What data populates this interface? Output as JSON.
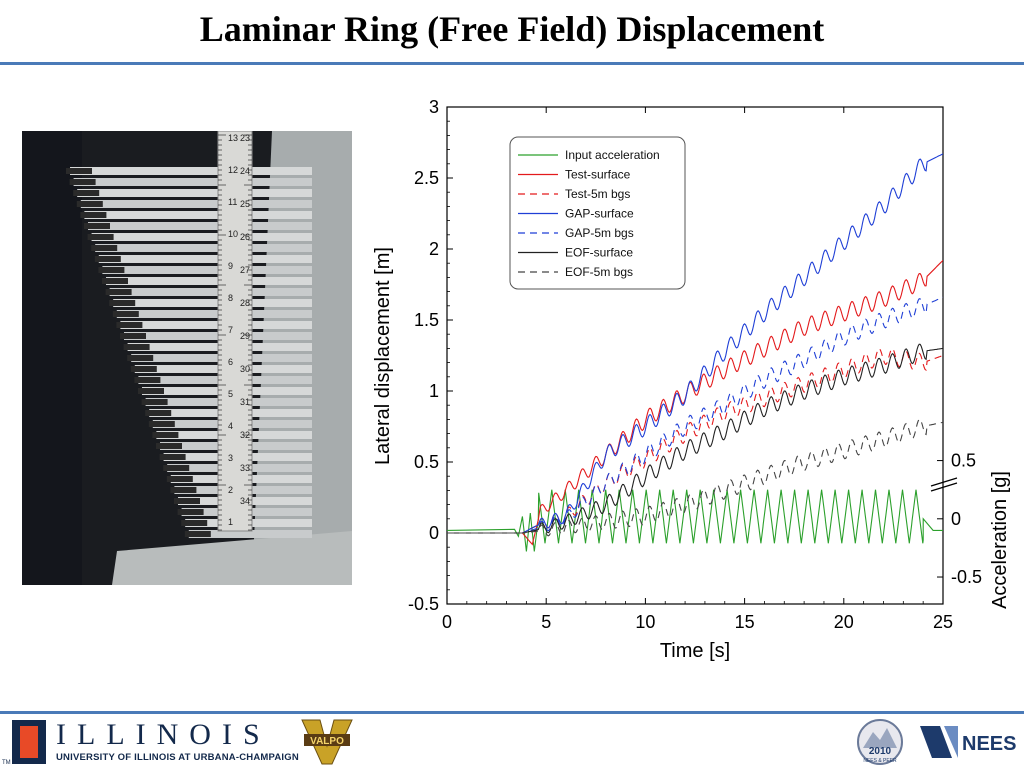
{
  "slide": {
    "title": "Laminar Ring (Free Field) Displacement"
  },
  "photo": {
    "ruler_numbers_left": [
      "13",
      "12",
      "11",
      "10",
      "9",
      "8",
      "7",
      "6",
      "5",
      "4",
      "3",
      "2",
      "1"
    ],
    "ruler_numbers_right": [
      "23",
      "24",
      "25",
      "26",
      "27",
      "28",
      "29",
      "30",
      "31",
      "32",
      "33",
      "34"
    ]
  },
  "footer": {
    "illinois_wordmark": "ILLINOIS",
    "illinois_subtitle": "UNIVERSITY OF ILLINOIS AT URBANA-CHAMPAIGN",
    "trademark": "TM",
    "valpo_label": "VALPO",
    "nees_peer_label": "NEES & PEER",
    "nees_peer_year": "2010",
    "nees_label": "NEES"
  },
  "colors": {
    "title_rule": "#4a7ab8",
    "illinois_navy": "#13294b",
    "illinois_orange": "#e84a27",
    "nees_navy": "#1d3a6b"
  },
  "chart_data": {
    "type": "line",
    "xlabel": "Time [s]",
    "ylabel": "Lateral displacement [m]",
    "y2label": "Acceleration [g]",
    "xlim": [
      0,
      25
    ],
    "ylim": [
      -0.5,
      3
    ],
    "xticks": [
      "0",
      "5",
      "10",
      "15",
      "20",
      "25"
    ],
    "yticks": [
      "-0.5",
      "0",
      "0.5",
      "1",
      "1.5",
      "2",
      "2.5",
      "3"
    ],
    "y2ticks": [
      "-0.5",
      "0",
      "0.5"
    ],
    "legend_position": "top-left",
    "series": [
      {
        "name": "Input acceleration",
        "color": "#2ca02c",
        "dash": "solid",
        "axis": "acceleration",
        "x": [
          0,
          3.4,
          3.6,
          3.8,
          4.0,
          4.2,
          4.4,
          4.6,
          24.0,
          24.5,
          25
        ],
        "y": [
          -0.1,
          -0.09,
          -0.15,
          0.02,
          -0.28,
          0.05,
          -0.28,
          0.0,
          0.0,
          -0.1,
          -0.1
        ],
        "oscillation": {
          "start": 4.6,
          "end": 24.0,
          "period": 0.68,
          "amplitude": 0.2
        }
      },
      {
        "name": "Test-surface",
        "color": "#e31a1c",
        "dash": "solid",
        "axis": "displacement",
        "x": [
          0,
          3.8,
          4.3,
          4.7,
          6,
          8,
          10,
          12,
          14,
          16,
          18,
          20,
          22,
          24,
          25
        ],
        "y": [
          0,
          0,
          -0.08,
          0.15,
          0.3,
          0.55,
          0.8,
          0.98,
          1.15,
          1.3,
          1.45,
          1.55,
          1.65,
          1.78,
          1.92
        ]
      },
      {
        "name": "Test-5m bgs",
        "color": "#e31a1c",
        "dash": "dashed",
        "axis": "displacement",
        "x": [
          0,
          3.8,
          4.5,
          6,
          8,
          10,
          12,
          14,
          16,
          18,
          20,
          22,
          24,
          25
        ],
        "y": [
          0,
          0,
          0.05,
          0.12,
          0.35,
          0.52,
          0.7,
          0.85,
          0.95,
          1.05,
          1.15,
          1.25,
          1.2,
          1.25
        ]
      },
      {
        "name": "GAP-surface",
        "color": "#1f3fd6",
        "dash": "solid",
        "axis": "displacement",
        "x": [
          0,
          3.8,
          4.5,
          6,
          8,
          10,
          12,
          14,
          16,
          18,
          20,
          22,
          24,
          25
        ],
        "y": [
          0,
          0,
          0.05,
          0.12,
          0.55,
          0.75,
          0.97,
          1.28,
          1.55,
          1.8,
          2.05,
          2.3,
          2.6,
          2.67
        ]
      },
      {
        "name": "GAP-5m bgs",
        "color": "#1f3fd6",
        "dash": "dashed",
        "axis": "displacement",
        "x": [
          0,
          3.8,
          4.5,
          6,
          8,
          10,
          12,
          14,
          16,
          18,
          20,
          22,
          24,
          25
        ],
        "y": [
          0,
          0,
          0.03,
          0.1,
          0.35,
          0.55,
          0.75,
          0.9,
          1.08,
          1.22,
          1.38,
          1.5,
          1.6,
          1.66
        ]
      },
      {
        "name": "EOF-surface",
        "color": "#222222",
        "dash": "solid",
        "axis": "displacement",
        "x": [
          0,
          3.8,
          4.5,
          6,
          8,
          10,
          12,
          14,
          16,
          18,
          20,
          22,
          24,
          25
        ],
        "y": [
          0,
          0,
          0.02,
          0.08,
          0.2,
          0.4,
          0.58,
          0.72,
          0.88,
          1.0,
          1.1,
          1.18,
          1.28,
          1.3
        ]
      },
      {
        "name": "EOF-5m bgs",
        "color": "#444444",
        "dash": "dashed",
        "axis": "displacement",
        "x": [
          0,
          3.8,
          5,
          7,
          10,
          12,
          14,
          16,
          18,
          20,
          22,
          24,
          25
        ],
        "y": [
          0,
          0,
          0.02,
          0.06,
          0.12,
          0.2,
          0.3,
          0.4,
          0.5,
          0.58,
          0.66,
          0.75,
          0.78
        ]
      }
    ]
  }
}
